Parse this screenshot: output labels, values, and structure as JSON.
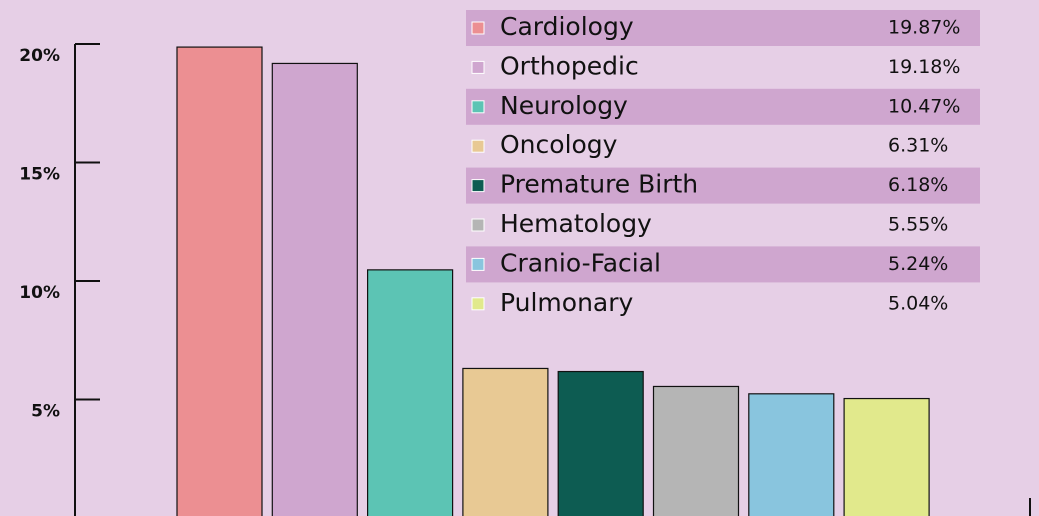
{
  "chart_data": {
    "type": "bar",
    "categories": [
      "Cardiology",
      "Orthopedic",
      "Neurology",
      "Oncology",
      "Premature Birth",
      "Hematology",
      "Cranio-Facial",
      "Pulmonary"
    ],
    "values": [
      19.87,
      19.18,
      10.47,
      6.31,
      6.18,
      5.55,
      5.24,
      5.04
    ],
    "value_labels": [
      "19.87%",
      "19.18%",
      "10.47%",
      "6.31%",
      "6.18%",
      "5.55%",
      "5.24%",
      "5.04%"
    ],
    "colors": [
      "#ec8f92",
      "#cfa6cf",
      "#5cc4b4",
      "#e8c994",
      "#0d5c52",
      "#b5b5b5",
      "#89c5de",
      "#e1e98c"
    ],
    "ylim": [
      0,
      20
    ],
    "yticks": [
      {
        "value": 5,
        "label": "5%"
      },
      {
        "value": 10,
        "label": "10%"
      },
      {
        "value": 15,
        "label": "15%"
      },
      {
        "value": 20,
        "label": "20%"
      }
    ]
  }
}
